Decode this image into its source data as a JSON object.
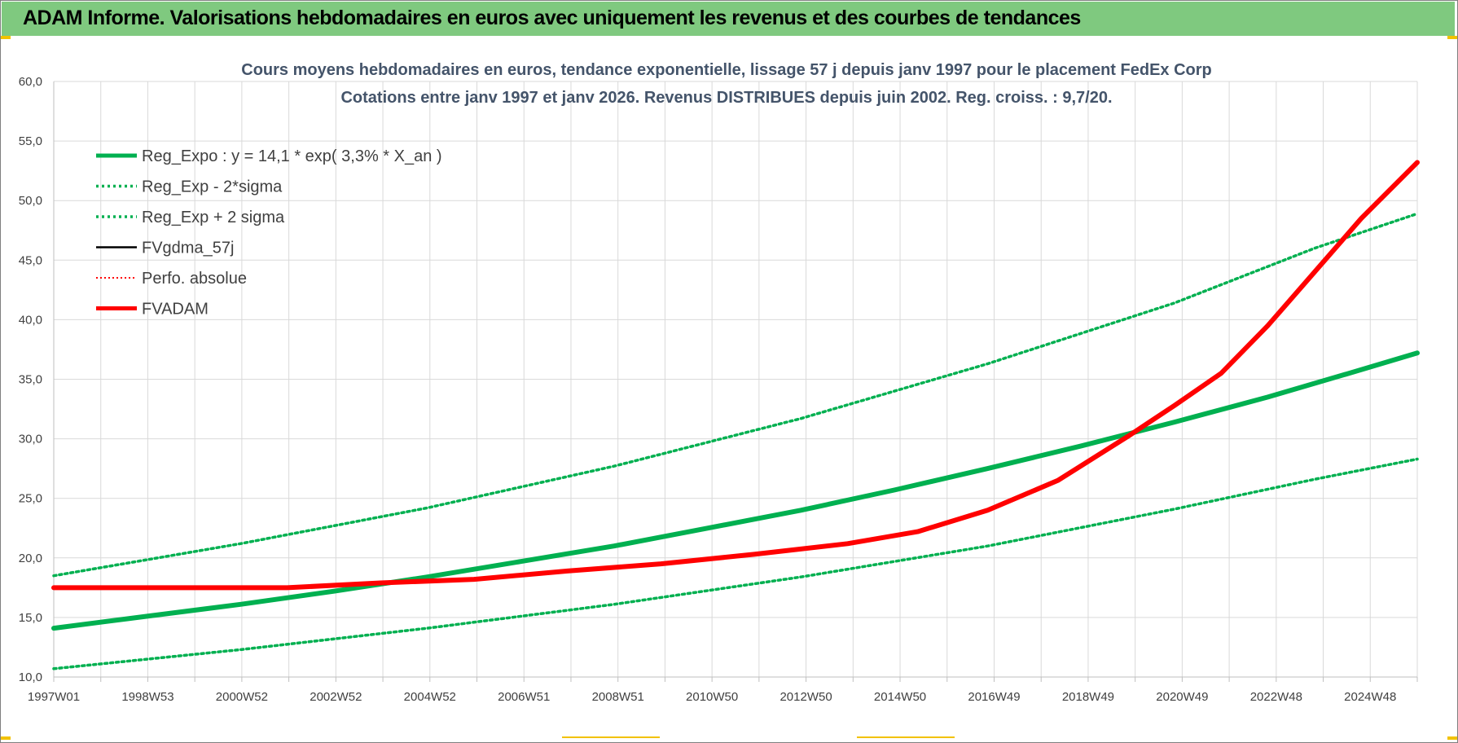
{
  "header": {
    "title": "ADAM Informe. Valorisations hebdomadaires en euros avec uniquement les revenus et des courbes de tendances"
  },
  "colors": {
    "banner": "#7fc97f",
    "trend_green": "#00b050",
    "series_black": "#000000",
    "series_red": "#ff0000",
    "grid": "#d9d9d9",
    "title_text": "#44546a"
  },
  "chart_data": {
    "type": "line",
    "title": "Cours moyens hebdomadaires en euros, tendance exponentielle, lissage 57 j depuis janv 1997  pour le placement FedEx Corp",
    "subtitle": "Cotations entre janv 1997 et janv 2026. Revenus DISTRIBUES depuis juin 2002. Reg. croiss. : 9,7/20.",
    "xlabel": "",
    "ylabel": "",
    "x_tick_labels": [
      "1997W01",
      "1998W53",
      "2000W52",
      "2002W52",
      "2004W52",
      "2006W51",
      "2008W51",
      "2010W50",
      "2012W50",
      "2014W50",
      "2016W49",
      "2018W49",
      "2020W49",
      "2022W48",
      "2024W48"
    ],
    "xlim": [
      1997.0,
      2026.2
    ],
    "ylim": [
      10,
      60
    ],
    "y_ticks": [
      "10,0",
      "15,0",
      "20,0",
      "25,0",
      "30,0",
      "35,0",
      "40,0",
      "45,0",
      "50,0",
      "55,0",
      "60,0"
    ],
    "grid": true,
    "legend_position": "top-left",
    "series": [
      {
        "name": "Reg_Expo : y = 14,1 * exp( 3,3% *  X_an )",
        "style": "solid-thick",
        "color": "#00b050",
        "points": [
          [
            1997.0,
            14.1
          ],
          [
            1999.0,
            15.1
          ],
          [
            2001.0,
            16.1
          ],
          [
            2003.0,
            17.2
          ],
          [
            2005.0,
            18.4
          ],
          [
            2007.0,
            19.7
          ],
          [
            2009.0,
            21.0
          ],
          [
            2011.0,
            22.5
          ],
          [
            2013.0,
            24.0
          ],
          [
            2015.0,
            25.7
          ],
          [
            2017.0,
            27.5
          ],
          [
            2019.0,
            29.4
          ],
          [
            2021.0,
            31.4
          ],
          [
            2023.0,
            33.5
          ],
          [
            2025.0,
            35.8
          ],
          [
            2026.2,
            37.2
          ]
        ]
      },
      {
        "name": "Reg_Exp - 2*sigma",
        "style": "dotted",
        "color": "#00b050",
        "points": [
          [
            1997.0,
            10.7
          ],
          [
            2001.0,
            12.3
          ],
          [
            2005.0,
            14.1
          ],
          [
            2009.0,
            16.1
          ],
          [
            2013.0,
            18.4
          ],
          [
            2017.0,
            21.0
          ],
          [
            2021.0,
            24.1
          ],
          [
            2024.0,
            26.6
          ],
          [
            2026.2,
            28.3
          ]
        ]
      },
      {
        "name": "Reg_Exp + 2 sigma",
        "style": "dotted",
        "color": "#00b050",
        "points": [
          [
            1997.0,
            18.5
          ],
          [
            2001.0,
            21.2
          ],
          [
            2005.0,
            24.2
          ],
          [
            2009.0,
            27.7
          ],
          [
            2013.0,
            31.7
          ],
          [
            2017.0,
            36.3
          ],
          [
            2021.0,
            41.4
          ],
          [
            2024.0,
            46.0
          ],
          [
            2026.2,
            48.9
          ]
        ]
      },
      {
        "name": "FVgdma_57j",
        "style": "solid-thin",
        "color": "#000000",
        "points": [
          [
            1997.0,
            17.5
          ],
          [
            2002.0,
            17.5
          ],
          [
            2004.0,
            17.9
          ],
          [
            2006.0,
            18.2
          ],
          [
            2008.0,
            18.9
          ],
          [
            2010.0,
            19.5
          ],
          [
            2012.0,
            20.3
          ],
          [
            2014.0,
            21.2
          ],
          [
            2015.5,
            22.2
          ],
          [
            2017.0,
            24.0
          ],
          [
            2018.5,
            26.5
          ],
          [
            2020.0,
            30.2
          ],
          [
            2021.0,
            32.8
          ],
          [
            2022.0,
            35.5
          ],
          [
            2023.0,
            39.5
          ],
          [
            2024.0,
            44.0
          ],
          [
            2025.0,
            48.5
          ],
          [
            2026.2,
            53.2
          ]
        ]
      },
      {
        "name": "Perfo. absolue",
        "style": "dotted-thin",
        "color": "#ff0000",
        "points": []
      },
      {
        "name": "FVADAM",
        "style": "solid-thick",
        "color": "#ff0000",
        "points": [
          [
            1997.0,
            17.5
          ],
          [
            2002.0,
            17.5
          ],
          [
            2004.0,
            17.9
          ],
          [
            2006.0,
            18.2
          ],
          [
            2008.0,
            18.9
          ],
          [
            2010.0,
            19.5
          ],
          [
            2012.0,
            20.3
          ],
          [
            2014.0,
            21.2
          ],
          [
            2015.5,
            22.2
          ],
          [
            2017.0,
            24.0
          ],
          [
            2018.5,
            26.5
          ],
          [
            2020.0,
            30.2
          ],
          [
            2021.0,
            32.8
          ],
          [
            2022.0,
            35.5
          ],
          [
            2023.0,
            39.5
          ],
          [
            2024.0,
            44.0
          ],
          [
            2025.0,
            48.5
          ],
          [
            2026.2,
            53.2
          ]
        ]
      }
    ]
  }
}
